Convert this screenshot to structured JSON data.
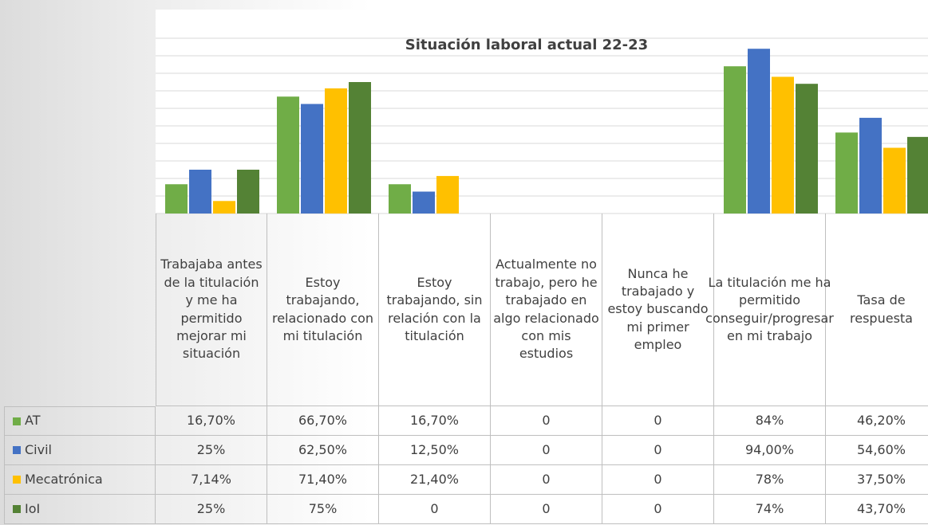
{
  "chart_data": {
    "type": "bar",
    "title": "Situación laboral actual 22-23",
    "categories": [
      "Trabajaba antes de la titulación y me ha permitido mejorar mi situación",
      "Estoy trabajando, relacionado con mi titulación",
      "Estoy trabajando, sin relación con la titulación",
      "Actualmente no trabajo, pero he trabajado en algo relacionado con mis estudios",
      "Nunca he trabajado y estoy buscando mi primer empleo",
      "La titulación me ha permitido conseguir/progresar en mi trabajo",
      "Tasa de respuesta"
    ],
    "series": [
      {
        "name": "AT",
        "color": "#70ad47",
        "values": [
          16.7,
          66.7,
          16.7,
          0,
          0,
          84,
          46.2
        ],
        "value_labels": [
          "16,70%",
          "66,70%",
          "16,70%",
          "0",
          "0",
          "84%",
          "46,20%"
        ]
      },
      {
        "name": "Civil",
        "color": "#4472c4",
        "values": [
          25,
          62.5,
          12.5,
          0,
          0,
          94,
          54.6
        ],
        "value_labels": [
          "25%",
          "62,50%",
          "12,50%",
          "0",
          "0",
          "94,00%",
          "54,60%"
        ]
      },
      {
        "name": "Mecatrónica",
        "color": "#ffc000",
        "values": [
          7.14,
          71.4,
          21.4,
          0,
          0,
          78,
          37.5
        ],
        "value_labels": [
          "7,14%",
          "71,40%",
          "21,40%",
          "0",
          "0",
          "78%",
          "37,50%"
        ]
      },
      {
        "name": "IoI",
        "color": "#548235",
        "values": [
          25,
          75,
          0,
          0,
          0,
          74,
          43.7
        ],
        "value_labels": [
          "25%",
          "75%",
          "0",
          "0",
          "0",
          "74%",
          "43,70%"
        ]
      }
    ],
    "ylim": [
      0,
      100
    ],
    "yticks": [
      0,
      10,
      20,
      30,
      40,
      50,
      60,
      70,
      80,
      90,
      100
    ],
    "grid": true
  }
}
